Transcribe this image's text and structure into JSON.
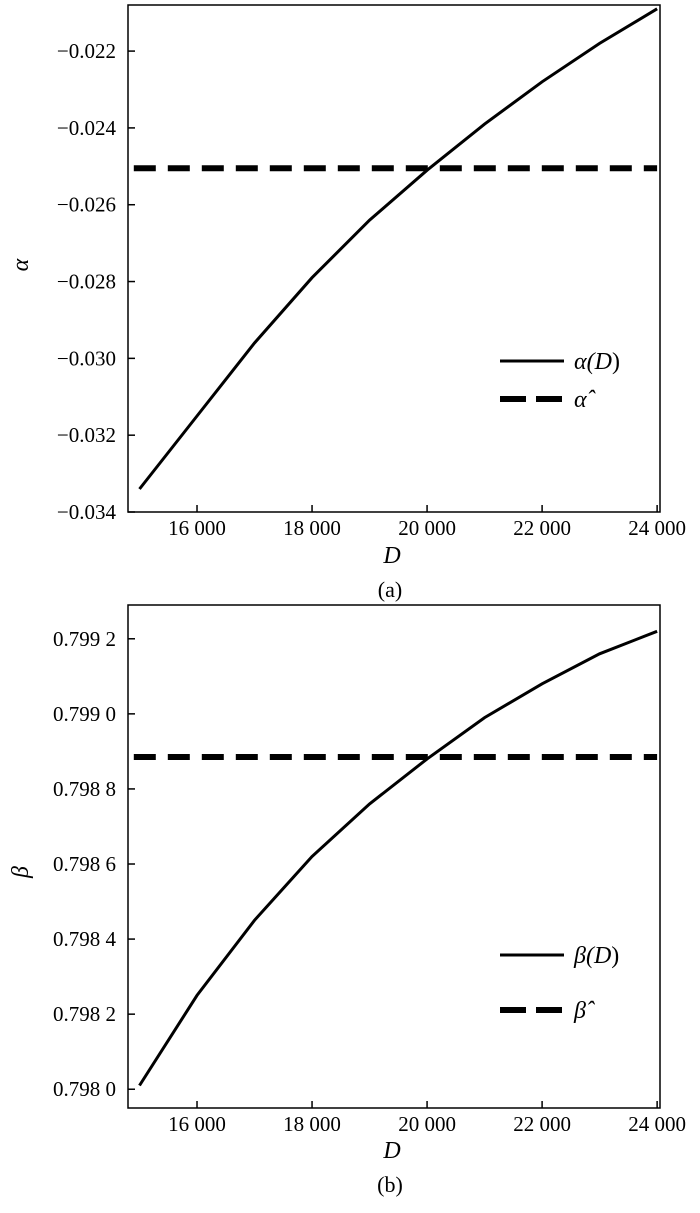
{
  "chart_data": [
    {
      "type": "line",
      "panel_label": "(a)",
      "xlabel": "D",
      "ylabel": "α",
      "xlim": [
        14800,
        24050
      ],
      "ylim": [
        -0.034,
        -0.0208
      ],
      "x_ticks": [
        16000,
        18000,
        20000,
        22000,
        24000
      ],
      "x_tick_labels": [
        "16 000",
        "18 000",
        "20 000",
        "22 000",
        "24 000"
      ],
      "y_ticks": [
        -0.034,
        -0.032,
        -0.03,
        -0.028,
        -0.026,
        -0.024,
        -0.022
      ],
      "y_tick_labels": [
        "−0.034",
        "−0.032",
        "−0.030",
        "−0.028",
        "−0.026",
        "−0.024",
        "−0.022"
      ],
      "legend_position": "right",
      "series": [
        {
          "name": "α(D)",
          "name_base": "α(",
          "name_var": "D",
          "name_close": ")",
          "style": "solid",
          "x": [
            15000,
            16000,
            17000,
            18000,
            19000,
            20000,
            21000,
            22000,
            23000,
            24000
          ],
          "y": [
            -0.0334,
            -0.0315,
            -0.0296,
            -0.0279,
            -0.0264,
            -0.0251,
            -0.0239,
            -0.0228,
            -0.0218,
            -0.0209
          ]
        },
        {
          "name": "α̂",
          "style": "dashed",
          "x": [
            14900,
            24000
          ],
          "y": [
            -0.02505,
            -0.02505
          ]
        }
      ]
    },
    {
      "type": "line",
      "panel_label": "(b)",
      "xlabel": "D",
      "ylabel": "β",
      "xlim": [
        14800,
        24050
      ],
      "ylim": [
        0.79795,
        0.79929
      ],
      "x_ticks": [
        16000,
        18000,
        20000,
        22000,
        24000
      ],
      "x_tick_labels": [
        "16 000",
        "18 000",
        "20 000",
        "22 000",
        "24 000"
      ],
      "y_ticks": [
        0.798,
        0.7982,
        0.7984,
        0.7986,
        0.7988,
        0.799,
        0.7992
      ],
      "y_tick_labels": [
        "0.798 0",
        "0.798 2",
        "0.798 4",
        "0.798 6",
        "0.798 8",
        "0.799 0",
        "0.799 2"
      ],
      "legend_position": "right",
      "series": [
        {
          "name": "β(D)",
          "name_base": "β(",
          "name_var": "D",
          "name_close": ")",
          "style": "solid",
          "x": [
            15000,
            16000,
            17000,
            18000,
            19000,
            20000,
            21000,
            22000,
            23000,
            24000
          ],
          "y": [
            0.79801,
            0.79825,
            0.79845,
            0.79862,
            0.79876,
            0.79888,
            0.79899,
            0.79908,
            0.79916,
            0.79922
          ]
        },
        {
          "name": "β̂",
          "style": "dashed",
          "x": [
            14900,
            24000
          ],
          "y": [
            0.798885,
            0.798885
          ]
        }
      ]
    }
  ]
}
